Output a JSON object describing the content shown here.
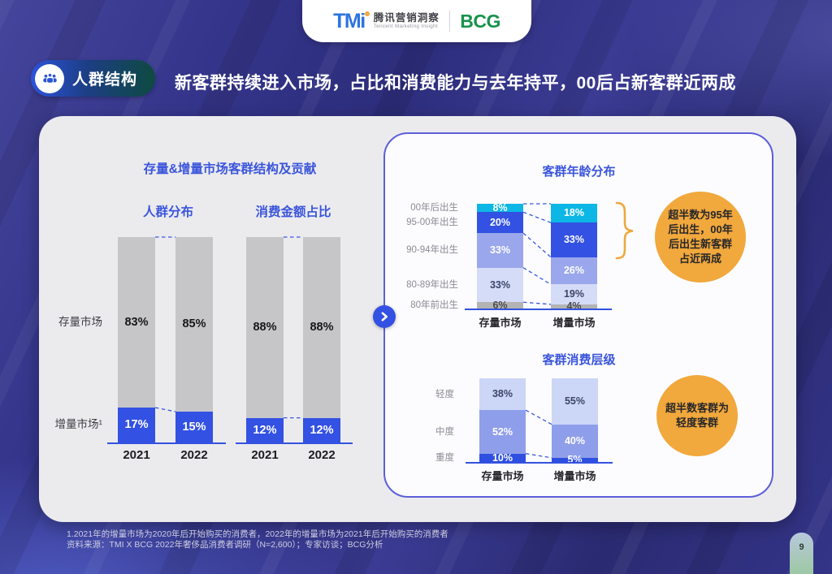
{
  "brand": {
    "tmi_logo": "TMi",
    "tmi_cn": "腾讯营销洞察",
    "tmi_en": "Tencent Marketing Insight",
    "bcg": "BCG"
  },
  "header": {
    "badge": "人群结构",
    "title": "新客群持续进入市场，占比和消费能力与去年持平，00后占新客群近两成"
  },
  "left_panel": {
    "title": "存量&增量市场客群结构及贡献"
  },
  "colors": {
    "accent_blue": "#3351e2",
    "panel_border": "#5c5fd9",
    "callout_orange": "#f1a83c",
    "bar_gray": "#c6c6c9",
    "cyan": "#0cb7e6",
    "periwinkle": "#9aa7ec",
    "lavender": "#d5dcf7"
  },
  "chart_data": [
    {
      "id": "crowd-distribution",
      "type": "bar",
      "subtype": "stacked-100",
      "title": "人群分布",
      "categories": [
        "2021",
        "2022"
      ],
      "unit": "%",
      "series": [
        {
          "name": "存量市场",
          "color": "#c6c6c9",
          "label_color": "#17171a",
          "values": [
            83,
            85
          ]
        },
        {
          "name": "增量市场¹",
          "color": "#3351e2",
          "label_color": "#ffffff",
          "values": [
            17,
            15
          ]
        }
      ]
    },
    {
      "id": "spend-amount-share",
      "type": "bar",
      "subtype": "stacked-100",
      "title": "消费金额占比",
      "categories": [
        "2021",
        "2022"
      ],
      "unit": "%",
      "series": [
        {
          "name": "存量市场",
          "color": "#c6c6c9",
          "label_color": "#17171a",
          "values": [
            88,
            88
          ]
        },
        {
          "name": "增量市场¹",
          "color": "#3351e2",
          "label_color": "#ffffff",
          "values": [
            12,
            12
          ]
        }
      ]
    },
    {
      "id": "age-distribution",
      "type": "bar",
      "subtype": "stacked-100",
      "title": "客群年龄分布",
      "categories": [
        "存量市场",
        "增量市场"
      ],
      "unit": "%",
      "series": [
        {
          "name": "00年后出生",
          "color": "#0cb7e6",
          "label_color": "#ffffff",
          "values": [
            8,
            18
          ]
        },
        {
          "name": "95-00年出生",
          "color": "#3351e2",
          "label_color": "#ffffff",
          "values": [
            20,
            33
          ]
        },
        {
          "name": "90-94年出生",
          "color": "#9aa7ec",
          "label_color": "#ffffff",
          "values": [
            33,
            26
          ]
        },
        {
          "name": "80-89年出生",
          "color": "#d5dcf7",
          "label_color": "#3c4569",
          "values": [
            33,
            19
          ]
        },
        {
          "name": "80年前出生",
          "color": "#b3b3b3",
          "label_color": "#4a4a4f",
          "values": [
            6,
            4
          ]
        }
      ]
    },
    {
      "id": "spend-tier",
      "type": "bar",
      "subtype": "stacked-100",
      "title": "客群消费层级",
      "categories": [
        "存量市场",
        "增量市场"
      ],
      "unit": "%",
      "series": [
        {
          "name": "轻度",
          "color": "#ccd6f6",
          "label_color": "#3c4569",
          "values": [
            38,
            55
          ]
        },
        {
          "name": "中度",
          "color": "#8f9eea",
          "label_color": "#ffffff",
          "values": [
            52,
            40
          ]
        },
        {
          "name": "重度",
          "color": "#2f4fe0",
          "label_color": "#ffffff",
          "values": [
            10,
            5
          ]
        }
      ]
    }
  ],
  "callouts": [
    {
      "text": "超半数为95年\n后出生，00年\n后出生新客群\n占近两成"
    },
    {
      "text": "超半数客群为\n轻度客群"
    }
  ],
  "footnotes": [
    "1.2021年的增量市场为2020年后开始购买的消费者，2022年的增量市场为2021年后开始购买的消费者",
    "资料来源：TMI X BCG 2022年奢侈品消费者调研（N=2,600）；专家访谈；BCG分析"
  ],
  "page_number": "9"
}
